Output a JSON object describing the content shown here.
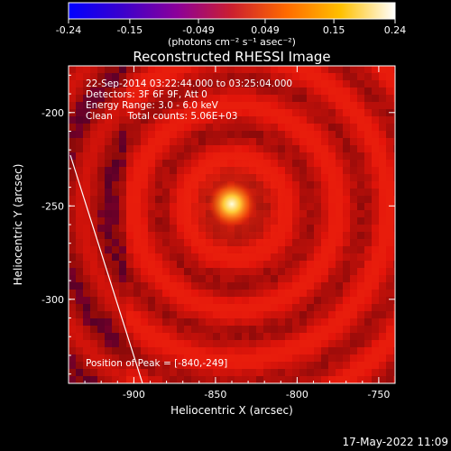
{
  "colorbar": {
    "ticks": [
      "-0.24",
      "-0.15",
      "-0.049",
      "0.049",
      "0.15",
      "0.24"
    ],
    "units": "(photons cm⁻² s⁻¹ asec⁻²)",
    "range": [
      -0.24,
      0.24
    ],
    "colormap": [
      "#0000ff",
      "#3c00cc",
      "#8c0099",
      "#cc1f2e",
      "#ff6a00",
      "#ffc000",
      "#ffffff"
    ]
  },
  "title": "Reconstructed RHESSI Image",
  "info": {
    "line1": "22-Sep-2014 03:22:44.000 to 03:25:04.000",
    "line2": "Detectors: 3F 6F 9F, Att 0",
    "line3": "Energy Range: 3.0 - 6.0 keV",
    "line4": "Clean     Total counts: 5.06E+03"
  },
  "peak_label": "Position of Peak = [-840,-249]",
  "axes": {
    "xlabel": "Heliocentric X (arcsec)",
    "ylabel": "Heliocentric Y (arcsec)",
    "xticks": [
      "-900",
      "-850",
      "-800",
      "-750"
    ],
    "yticks": [
      "-200",
      "-250",
      "-300"
    ]
  },
  "timestamp": "17-May-2022 11:09",
  "image": {
    "x_range": [
      -940,
      -740
    ],
    "y_range": [
      -345,
      -175
    ],
    "peak": [
      -840,
      -249
    ],
    "limb_color": "#ffffff",
    "background_color": "#cc1a10"
  }
}
